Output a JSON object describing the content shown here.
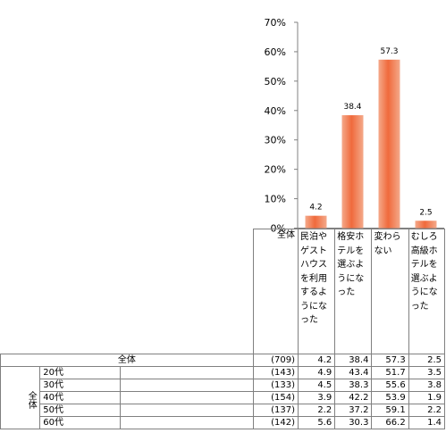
{
  "chart_data": {
    "type": "bar",
    "categories": [
      "民泊やゲストハウスを利用するようになった",
      "格安ホテルを選ぶようになった",
      "変わらない",
      "むしろ高級ホテルを選ぶようになった"
    ],
    "values": [
      4.2,
      38.4,
      57.3,
      2.5
    ],
    "ylim": [
      0,
      70
    ],
    "yticks": [
      "0%",
      "10%",
      "20%",
      "30%",
      "40%",
      "50%",
      "60%",
      "70%"
    ],
    "grid": false,
    "bar_color": "#f06a3c",
    "value_labels": [
      "4.2",
      "38.4",
      "57.3",
      "2.5"
    ]
  },
  "table": {
    "header": {
      "total_label": "全体",
      "columns": [
        "民泊やゲストハウスを利用するようになった",
        "格安ホテルを選ぶようになった",
        "変わらない",
        "むしろ高級ホテルを選ぶようになった"
      ]
    },
    "total_row": {
      "label": "全体",
      "n": "(709)",
      "values": [
        "4.2",
        "38.4",
        "57.3",
        "2.5"
      ]
    },
    "group_label": "全体",
    "rows": [
      {
        "label": "20代",
        "n": "(143)",
        "values": [
          "4.9",
          "43.4",
          "51.7",
          "3.5"
        ]
      },
      {
        "label": "30代",
        "n": "(133)",
        "values": [
          "4.5",
          "38.3",
          "55.6",
          "3.8"
        ]
      },
      {
        "label": "40代",
        "n": "(154)",
        "values": [
          "3.9",
          "42.2",
          "53.9",
          "1.9"
        ]
      },
      {
        "label": "50代",
        "n": "(137)",
        "values": [
          "2.2",
          "37.2",
          "59.1",
          "2.2"
        ]
      },
      {
        "label": "60代",
        "n": "(142)",
        "values": [
          "5.6",
          "30.3",
          "66.2",
          "1.4"
        ]
      }
    ]
  }
}
